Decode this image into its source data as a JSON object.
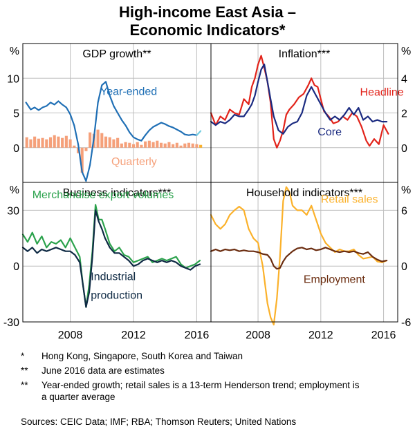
{
  "title_line1": "High-income East Asia –",
  "title_line2": "Economic Indicators*",
  "colors": {
    "blue": "#1f6fb5",
    "salmon": "#f5a07a",
    "red": "#e2231a",
    "navy": "#1a2a80",
    "green": "#2ba24c",
    "dark": "#0f2a44",
    "orange": "#fbb12a",
    "brown": "#6b2d10",
    "cyan": "#73cde0",
    "grid": "#bdbdbd"
  },
  "footnotes": [
    {
      "marker": "*",
      "text": "Hong Kong, Singapore, South Korea and Taiwan"
    },
    {
      "marker": "**",
      "text": "June 2016 data are estimates"
    },
    {
      "marker": "**",
      "text": "Year-ended growth; retail sales is a 13-term Henderson trend; employment is a quarter average"
    }
  ],
  "sources": "Sources:  CEIC Data; IMF; RBA; Thomson Reuters; United Nations",
  "chart_data": [
    {
      "type": "line",
      "title": "GDP growth**",
      "unit": "%",
      "axis_side": "left",
      "ylim": [
        -5,
        15
      ],
      "yticks": [
        0,
        5,
        10
      ],
      "xlim": [
        2005,
        2016.9
      ],
      "xticks": [
        2008,
        2012,
        2016
      ],
      "series": [
        {
          "name": "Year-ended",
          "color_key": "blue",
          "x": [
            2005.2,
            2005.5,
            2005.75,
            2006.0,
            2006.25,
            2006.5,
            2006.75,
            2007.0,
            2007.25,
            2007.5,
            2007.75,
            2008.0,
            2008.25,
            2008.5,
            2008.75,
            2009.0,
            2009.25,
            2009.5,
            2009.75,
            2010.0,
            2010.25,
            2010.5,
            2010.75,
            2011.0,
            2011.25,
            2011.5,
            2011.75,
            2012.0,
            2012.25,
            2012.5,
            2012.75,
            2013.0,
            2013.25,
            2013.5,
            2013.75,
            2014.0,
            2014.25,
            2014.5,
            2014.75,
            2015.0,
            2015.25,
            2015.5,
            2015.75,
            2016.0
          ],
          "values": [
            6.5,
            5.5,
            5.8,
            5.4,
            5.8,
            6.0,
            6.5,
            6.2,
            6.7,
            6.2,
            5.8,
            4.8,
            3.2,
            0.5,
            -3.5,
            -4.8,
            -2.5,
            1.5,
            6.5,
            9.0,
            9.5,
            7.5,
            6.0,
            5.0,
            4.0,
            3.2,
            2.2,
            1.5,
            1.2,
            1.0,
            1.8,
            2.5,
            3.0,
            3.3,
            3.6,
            3.4,
            3.1,
            2.9,
            2.6,
            2.3,
            1.9,
            1.8,
            1.9,
            1.8
          ]
        },
        {
          "name": "June 2016 estimate",
          "color_key": "cyan",
          "x": [
            2016.0,
            2016.25
          ],
          "values": [
            1.8,
            2.4
          ]
        }
      ],
      "bars": {
        "name": "Quarterly",
        "color_key": "salmon",
        "x": [
          2005.25,
          2005.5,
          2005.75,
          2006.0,
          2006.25,
          2006.5,
          2006.75,
          2007.0,
          2007.25,
          2007.5,
          2007.75,
          2008.0,
          2008.25,
          2008.5,
          2008.75,
          2009.0,
          2009.25,
          2009.5,
          2009.75,
          2010.0,
          2010.25,
          2010.5,
          2010.75,
          2011.0,
          2011.25,
          2011.5,
          2011.75,
          2012.0,
          2012.25,
          2012.5,
          2012.75,
          2013.0,
          2013.25,
          2013.5,
          2013.75,
          2014.0,
          2014.25,
          2014.5,
          2014.75,
          2015.0,
          2015.25,
          2015.5,
          2015.75,
          2016.0
        ],
        "values": [
          1.5,
          1.2,
          1.6,
          1.3,
          1.4,
          1.2,
          1.5,
          1.8,
          1.6,
          1.4,
          1.7,
          1.2,
          0.3,
          -0.8,
          -3.6,
          -0.5,
          2.2,
          2.0,
          2.6,
          2.1,
          1.6,
          1.5,
          1.2,
          1.4,
          0.6,
          0.8,
          0.7,
          0.5,
          0.8,
          0.4,
          0.9,
          1.0,
          0.8,
          1.0,
          0.7,
          0.6,
          0.8,
          0.5,
          0.7,
          0.3,
          0.6,
          0.7,
          0.6,
          0.5
        ],
        "estimate": {
          "x": 2016.25,
          "value": 0.4,
          "color_key": "orange"
        }
      },
      "labels": [
        {
          "text": "Year-ended",
          "color_key": "blue",
          "x": 2009.9,
          "y": 7.6
        },
        {
          "text": "Quarterly",
          "color_key": "salmon",
          "x": 2010.6,
          "y": -2.5
        }
      ]
    },
    {
      "type": "line",
      "title": "Inflation***",
      "unit": "%",
      "axis_side": "right",
      "ylim": [
        -2,
        6
      ],
      "yticks": [
        0,
        2,
        4
      ],
      "xlim": [
        2005,
        2016.9
      ],
      "xticks": [
        2008,
        2012,
        2016
      ],
      "series": [
        {
          "name": "Headline",
          "color_key": "red",
          "x": [
            2005.0,
            2005.3,
            2005.6,
            2005.9,
            2006.2,
            2006.5,
            2006.8,
            2007.1,
            2007.4,
            2007.6,
            2007.8,
            2008.0,
            2008.2,
            2008.4,
            2008.6,
            2008.8,
            2009.0,
            2009.2,
            2009.4,
            2009.6,
            2009.8,
            2010.0,
            2010.3,
            2010.6,
            2010.9,
            2011.2,
            2011.4,
            2011.6,
            2011.8,
            2012.0,
            2012.2,
            2012.5,
            2012.8,
            2013.1,
            2013.4,
            2013.7,
            2014.0,
            2014.3,
            2014.6,
            2014.9,
            2015.1,
            2015.4,
            2015.7,
            2016.0,
            2016.3
          ],
          "values": [
            2.0,
            1.3,
            1.8,
            1.6,
            2.2,
            2.0,
            1.9,
            2.8,
            2.5,
            3.5,
            4.0,
            4.8,
            5.3,
            4.6,
            3.8,
            2.6,
            0.5,
            0.0,
            0.4,
            1.0,
            1.9,
            2.2,
            2.5,
            2.9,
            3.1,
            3.6,
            4.0,
            3.6,
            3.5,
            2.8,
            2.1,
            1.8,
            1.4,
            1.5,
            1.8,
            1.6,
            2.0,
            1.8,
            1.2,
            0.4,
            0.1,
            0.5,
            0.2,
            1.3,
            0.8
          ]
        },
        {
          "name": "Core",
          "color_key": "navy",
          "x": [
            2005.0,
            2005.3,
            2005.6,
            2005.9,
            2006.2,
            2006.5,
            2006.8,
            2007.1,
            2007.4,
            2007.6,
            2007.8,
            2008.0,
            2008.2,
            2008.4,
            2008.6,
            2008.8,
            2009.0,
            2009.3,
            2009.6,
            2009.9,
            2010.2,
            2010.5,
            2010.8,
            2011.1,
            2011.4,
            2011.7,
            2012.0,
            2012.3,
            2012.6,
            2012.9,
            2013.2,
            2013.5,
            2013.8,
            2014.1,
            2014.4,
            2014.7,
            2015.0,
            2015.3,
            2015.6,
            2015.9,
            2016.2
          ],
          "values": [
            1.5,
            1.3,
            1.5,
            1.4,
            1.6,
            1.9,
            1.8,
            1.8,
            2.2,
            2.5,
            3.0,
            3.8,
            4.5,
            4.8,
            3.8,
            2.8,
            1.8,
            1.0,
            0.8,
            1.2,
            1.4,
            1.5,
            2.0,
            3.0,
            3.5,
            3.0,
            2.5,
            2.0,
            1.6,
            1.8,
            1.6,
            1.9,
            2.3,
            1.9,
            2.3,
            1.6,
            1.8,
            1.5,
            1.6,
            1.5,
            1.5
          ]
        }
      ],
      "labels": [
        {
          "text": "Headline",
          "color_key": "red",
          "x": 2014.5,
          "y": 3.0
        },
        {
          "text": "Core",
          "color_key": "navy",
          "x": 2011.8,
          "y": 0.7
        }
      ]
    },
    {
      "type": "line",
      "title": "Business indicators***",
      "unit": "%",
      "axis_side": "left",
      "ylim": [
        -30,
        45
      ],
      "yticks": [
        -30,
        0,
        30
      ],
      "xlim": [
        2005,
        2016.9
      ],
      "xticks": [
        2008,
        2012,
        2016
      ],
      "series": [
        {
          "name": "Merchandise export volumes",
          "color_key": "green",
          "x": [
            2005.0,
            2005.3,
            2005.6,
            2005.9,
            2006.2,
            2006.5,
            2006.8,
            2007.1,
            2007.4,
            2007.7,
            2008.0,
            2008.3,
            2008.6,
            2008.8,
            2009.0,
            2009.2,
            2009.4,
            2009.6,
            2009.8,
            2010.0,
            2010.2,
            2010.5,
            2010.8,
            2011.1,
            2011.4,
            2011.7,
            2012.0,
            2012.3,
            2012.6,
            2012.9,
            2013.2,
            2013.5,
            2013.8,
            2014.1,
            2014.4,
            2014.7,
            2015.0,
            2015.3,
            2015.6,
            2015.9,
            2016.2
          ],
          "values": [
            17,
            13,
            18,
            12,
            16,
            10,
            13,
            12,
            14,
            10,
            15,
            10,
            5,
            -10,
            -22,
            -10,
            8,
            33,
            25,
            25,
            20,
            12,
            8,
            10,
            6,
            5,
            2,
            3,
            4,
            5,
            2,
            3,
            4,
            3,
            4,
            5,
            1,
            -1,
            0,
            1,
            3
          ]
        },
        {
          "name": "Industrial production",
          "color_key": "dark",
          "x": [
            2005.0,
            2005.3,
            2005.6,
            2005.9,
            2006.2,
            2006.5,
            2006.8,
            2007.1,
            2007.4,
            2007.7,
            2008.0,
            2008.3,
            2008.6,
            2008.8,
            2009.0,
            2009.2,
            2009.4,
            2009.6,
            2009.8,
            2010.0,
            2010.2,
            2010.5,
            2010.8,
            2011.1,
            2011.4,
            2011.7,
            2012.0,
            2012.3,
            2012.6,
            2012.9,
            2013.2,
            2013.5,
            2013.8,
            2014.1,
            2014.4,
            2014.7,
            2015.0,
            2015.3,
            2015.6,
            2015.9,
            2016.2
          ],
          "values": [
            10,
            8,
            10,
            7,
            9,
            8,
            9,
            10,
            9,
            8,
            8,
            6,
            2,
            -10,
            -22,
            -14,
            5,
            30,
            24,
            20,
            15,
            10,
            7,
            7,
            5,
            3,
            0,
            1,
            3,
            4,
            3,
            2,
            3,
            2,
            3,
            2,
            0,
            -1,
            -2,
            0,
            1
          ]
        }
      ],
      "labels": [
        {
          "text": "Merchandise export volumes",
          "color_key": "green",
          "x": 2005.6,
          "y": 36.5
        },
        {
          "text": "Industrial",
          "color_key": "dark",
          "x": 2009.3,
          "y": -7.5
        },
        {
          "text": "production",
          "color_key": "dark",
          "x": 2009.3,
          "y": -17.5
        }
      ]
    },
    {
      "type": "line",
      "title": "Household indicators***",
      "unit": "%",
      "axis_side": "right",
      "ylim": [
        -6,
        9
      ],
      "yticks": [
        -6,
        0,
        6
      ],
      "xlim": [
        2005,
        2016.9
      ],
      "xticks": [
        2008,
        2012,
        2016
      ],
      "series": [
        {
          "name": "Retail sales",
          "color_key": "orange",
          "x": [
            2005.0,
            2005.3,
            2005.6,
            2005.9,
            2006.2,
            2006.5,
            2006.8,
            2007.1,
            2007.4,
            2007.7,
            2008.0,
            2008.3,
            2008.6,
            2008.8,
            2009.0,
            2009.2,
            2009.4,
            2009.6,
            2009.8,
            2010.0,
            2010.2,
            2010.5,
            2010.8,
            2011.1,
            2011.4,
            2011.7,
            2012.0,
            2012.3,
            2012.6,
            2012.9,
            2013.2,
            2013.5,
            2013.8,
            2014.1,
            2014.4,
            2014.7,
            2015.0,
            2015.3,
            2015.6,
            2015.9,
            2016.2
          ],
          "values": [
            5.5,
            4.5,
            4.0,
            4.5,
            5.5,
            6.0,
            6.4,
            6.0,
            4.0,
            3.0,
            2.5,
            0.0,
            -4.0,
            -5.5,
            -6.3,
            -3.5,
            1.0,
            7.0,
            8.5,
            8.0,
            6.5,
            6.0,
            6.0,
            5.5,
            6.5,
            5.0,
            3.5,
            2.5,
            2.0,
            1.5,
            1.8,
            1.6,
            1.6,
            1.8,
            1.2,
            0.8,
            0.9,
            1.0,
            0.5,
            0.4,
            0.6
          ]
        },
        {
          "name": "Employment",
          "color_key": "brown",
          "x": [
            2005.0,
            2005.3,
            2005.6,
            2005.9,
            2006.2,
            2006.5,
            2006.8,
            2007.1,
            2007.4,
            2007.7,
            2008.0,
            2008.3,
            2008.6,
            2008.8,
            2009.0,
            2009.2,
            2009.4,
            2009.6,
            2009.8,
            2010.0,
            2010.2,
            2010.5,
            2010.8,
            2011.1,
            2011.4,
            2011.7,
            2012.0,
            2012.3,
            2012.6,
            2012.9,
            2013.2,
            2013.5,
            2013.8,
            2014.1,
            2014.4,
            2014.7,
            2015.0,
            2015.3,
            2015.6,
            2015.9,
            2016.2
          ],
          "values": [
            1.6,
            1.8,
            1.6,
            1.8,
            1.7,
            1.8,
            1.6,
            1.7,
            1.6,
            1.6,
            1.5,
            1.3,
            1.2,
            0.8,
            0.0,
            -0.3,
            -0.2,
            0.5,
            1.0,
            1.3,
            1.6,
            1.9,
            2.0,
            1.8,
            1.9,
            1.7,
            1.8,
            2.0,
            1.8,
            1.6,
            1.5,
            1.6,
            1.5,
            1.6,
            1.4,
            1.3,
            1.5,
            1.0,
            0.7,
            0.5,
            0.6
          ]
        }
      ],
      "labels": [
        {
          "text": "Retail sales",
          "color_key": "orange",
          "x": 2012.0,
          "y": 6.8
        },
        {
          "text": "Employment",
          "color_key": "brown",
          "x": 2010.9,
          "y": -1.8
        }
      ]
    }
  ]
}
